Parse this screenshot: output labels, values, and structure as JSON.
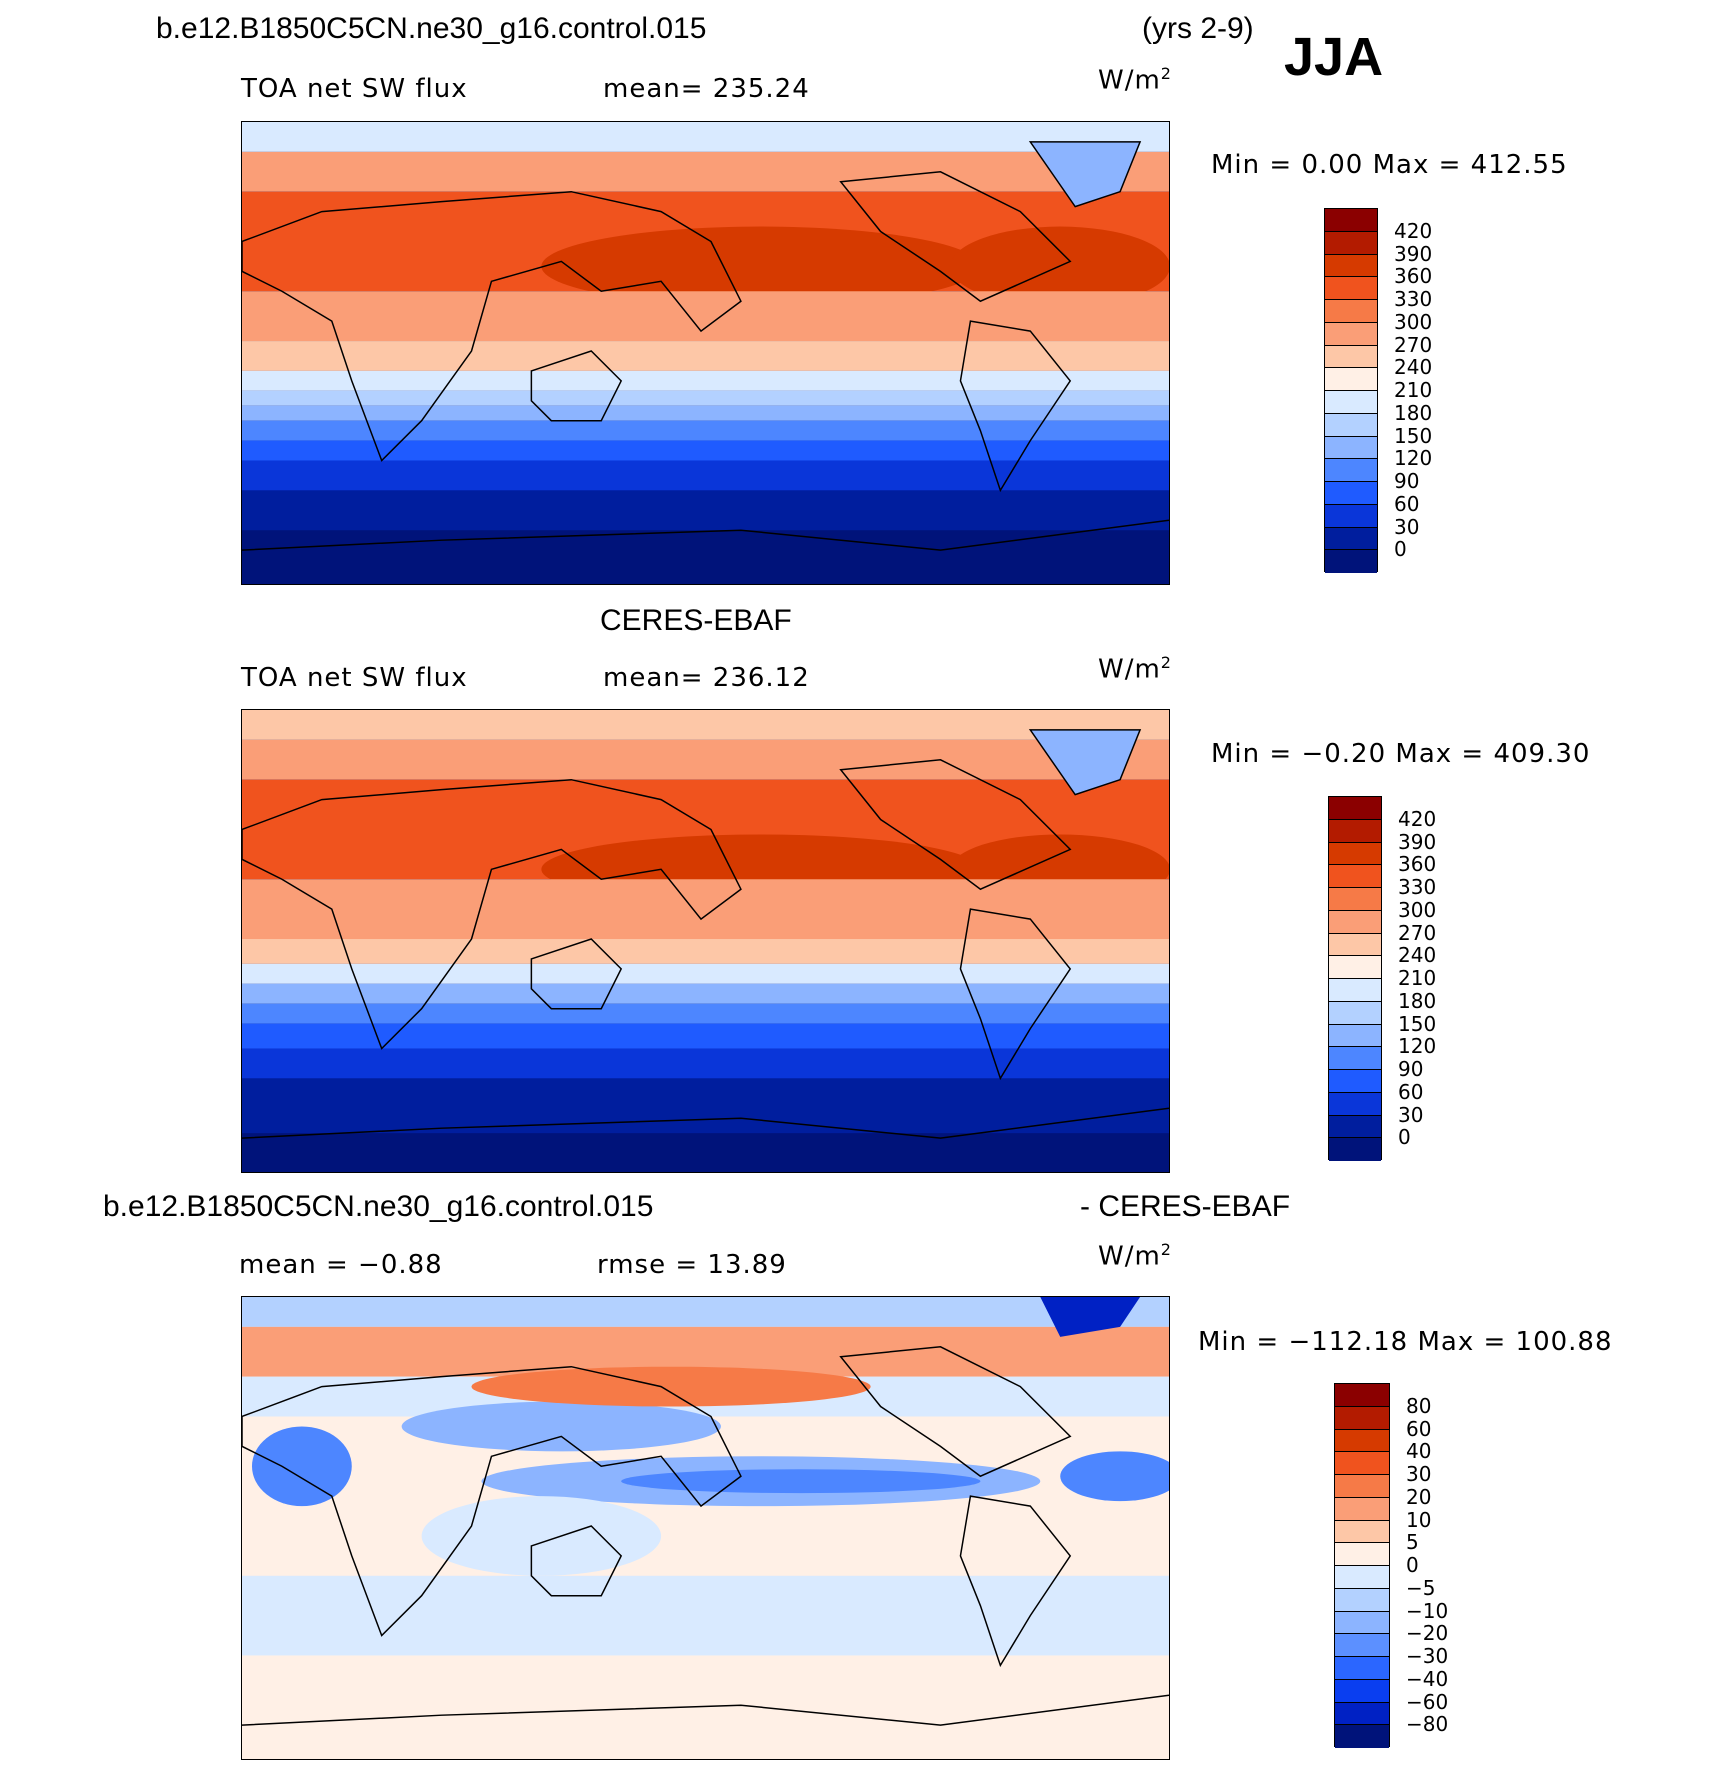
{
  "header": {
    "case_name": "b.e12.B1850C5CN.ne30_g16.control.015",
    "years": "(yrs 2-9)",
    "season": "JJA"
  },
  "panels": [
    {
      "id": "model",
      "title": "",
      "variable": "TOA net SW flux",
      "stat_left": "mean=  235.24",
      "stat_right": "",
      "units": "W/m",
      "units_sup": "2",
      "minmax": "Min =    0.00  Max  =  412.55",
      "legend_levels": [
        "420",
        "390",
        "360",
        "330",
        "300",
        "270",
        "240",
        "210",
        "180",
        "150",
        "120",
        "90",
        "60",
        "30",
        "0"
      ]
    },
    {
      "id": "obs",
      "title": "CERES-EBAF",
      "variable": "TOA net SW flux",
      "stat_left": "mean=  236.12",
      "stat_right": "",
      "units": "W/m",
      "units_sup": "2",
      "minmax": "Min =   −0.20  Max  =  409.30",
      "legend_levels": [
        "420",
        "390",
        "360",
        "330",
        "300",
        "270",
        "240",
        "210",
        "180",
        "150",
        "120",
        "90",
        "60",
        "30",
        "0"
      ]
    },
    {
      "id": "diff",
      "title_left": "b.e12.B1850C5CN.ne30_g16.control.015",
      "title_right": "- CERES-EBAF",
      "stat_left": "mean  =   −0.88",
      "stat_right": "rmse  =   13.89",
      "units": "W/m",
      "units_sup": "2",
      "minmax": "Min  = −112.18  Max  =  100.88",
      "legend_levels": [
        "80",
        "60",
        "40",
        "30",
        "20",
        "10",
        "5",
        "0",
        "−5",
        "−10",
        "−20",
        "−30",
        "−40",
        "−60",
        "−80"
      ]
    }
  ],
  "colors": {
    "flux_scale": [
      "#8b0000",
      "#b31b00",
      "#d63a00",
      "#f0531e",
      "#f67a47",
      "#fa9e77",
      "#fdc7a7",
      "#fff0e6",
      "#d9eaff",
      "#b3d1ff",
      "#8cb4ff",
      "#4d86ff",
      "#1f5bff",
      "#0a36d9",
      "#001e9e",
      "#00137a"
    ],
    "diff_scale": [
      "#8b0000",
      "#b31b00",
      "#d63a00",
      "#f0531e",
      "#f67a47",
      "#fa9e77",
      "#fdc7a7",
      "#fff0e6",
      "#d9eaff",
      "#b3d1ff",
      "#8cb4ff",
      "#5c90ff",
      "#2b66ff",
      "#0a3ef0",
      "#0021c4",
      "#00137a"
    ]
  }
}
